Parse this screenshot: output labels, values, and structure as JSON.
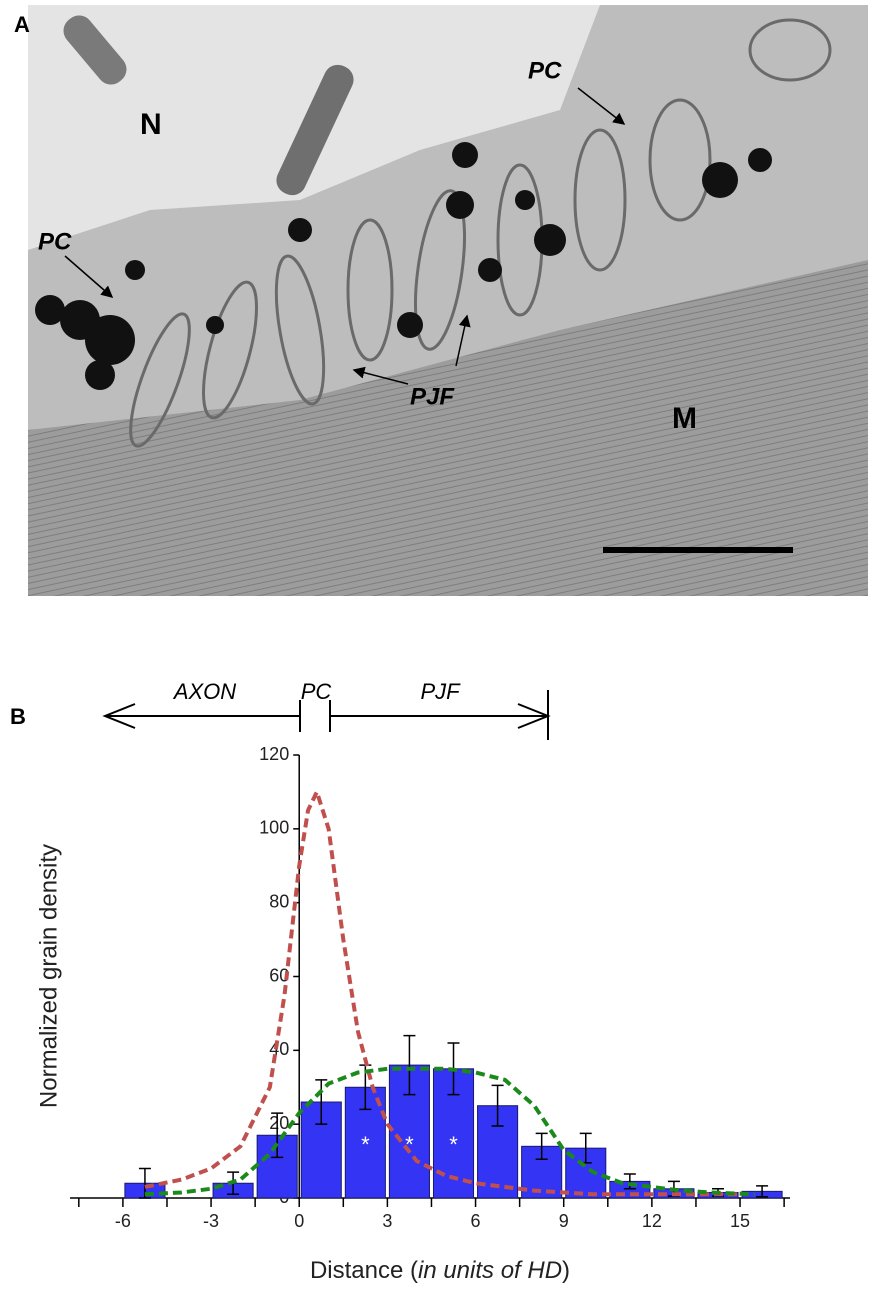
{
  "panel_a": {
    "label": "A",
    "annotations": [
      "N",
      "PC",
      "PC",
      "PJF",
      "M"
    ]
  },
  "chart_data": {
    "type": "histogram",
    "panel_label": "B",
    "region_labels": [
      "AXON",
      "PC",
      "PJF"
    ],
    "ylabel": "Normalized grain density",
    "xlabel": [
      "Distance (",
      "in units of HD",
      ")"
    ],
    "bins": [
      -6,
      -4.5,
      -3,
      -1.5,
      0,
      1.5,
      3,
      4.5,
      6,
      7.5,
      9,
      10.5,
      12,
      13.5,
      15,
      16.5
    ],
    "values": [
      4,
      0,
      4,
      17,
      26,
      30,
      36,
      35,
      25,
      14,
      13.5,
      4.5,
      2.5,
      1.5,
      1.8
    ],
    "errors": [
      4,
      null,
      3,
      6,
      6,
      6,
      8,
      7,
      5.5,
      3.5,
      4,
      2,
      2,
      1,
      1.5
    ],
    "color": "#3434f4",
    "significant": [
      false,
      false,
      false,
      false,
      false,
      true,
      true,
      true,
      false,
      false,
      false,
      false,
      false,
      false,
      false
    ],
    "significance_label": "*",
    "curves": [
      {
        "color": "#c0504d",
        "x": [
          -5.25,
          -4,
          -3,
          -2,
          -1,
          -0.5,
          0,
          0.3,
          0.6,
          1,
          1.5,
          2,
          2.5,
          3,
          4,
          5,
          6,
          8,
          10,
          12,
          15
        ],
        "values": [
          3,
          5,
          8,
          14,
          30,
          55,
          90,
          105,
          110,
          100,
          70,
          45,
          30,
          20,
          10,
          6,
          4,
          2,
          1,
          1,
          1
        ]
      },
      {
        "color": "#1a8a1a",
        "x": [
          -5.25,
          -4,
          -3,
          -2,
          -1,
          0,
          1,
          2,
          3,
          4,
          5,
          6,
          7,
          8,
          9,
          10,
          11,
          12,
          13,
          14,
          15.5
        ],
        "values": [
          1,
          1.5,
          2.5,
          5,
          12,
          23,
          31,
          34,
          35,
          35,
          35,
          34,
          32,
          25,
          13,
          7,
          4,
          3,
          2,
          1.5,
          1
        ]
      }
    ],
    "xlim": [
      -7.8,
      16.7
    ],
    "xticks": [
      -6,
      -3,
      0,
      3,
      6,
      9,
      12,
      15
    ],
    "xticks_minor": [
      -7.5,
      -4.5,
      -1.5,
      1.5,
      4.5,
      7.5,
      10.5,
      13.5,
      16.5
    ],
    "ylim": [
      0,
      120
    ],
    "yticks": [
      0,
      20,
      40,
      60,
      80,
      100,
      120
    ]
  }
}
